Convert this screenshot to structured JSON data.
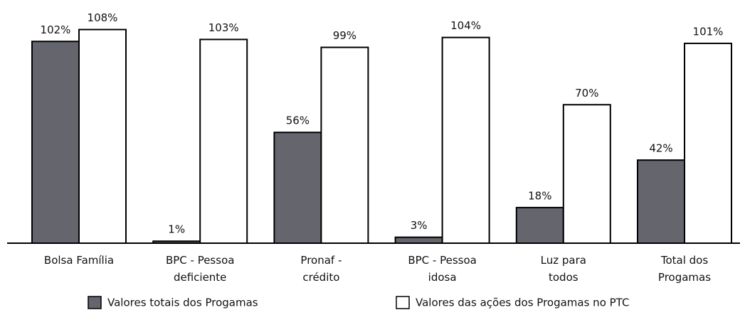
{
  "chart_data": {
    "type": "bar",
    "categories": [
      [
        "Bolsa Família"
      ],
      [
        "BPC - Pessoa",
        "deficiente"
      ],
      [
        "Pronaf -",
        "crédito"
      ],
      [
        "BPC - Pessoa",
        "idosa"
      ],
      [
        "Luz para",
        "todos"
      ],
      [
        "Total dos",
        "Progamas"
      ]
    ],
    "series": [
      {
        "name": "Valores totais dos Progamas",
        "color": "#65666d",
        "values": [
          102,
          1,
          56,
          3,
          18,
          42
        ],
        "value_labels": [
          "102%",
          "1%",
          "56%",
          "3%",
          "18%",
          "42%"
        ]
      },
      {
        "name": "Valores das ações dos Progamas no PTC",
        "color": "#ffffff",
        "values": [
          108,
          103,
          99,
          104,
          70,
          101
        ],
        "value_labels": [
          "108%",
          "103%",
          "99%",
          "104%",
          "70%",
          "101%"
        ]
      }
    ],
    "ylim": [
      0,
      110
    ],
    "legend": "bottom"
  }
}
